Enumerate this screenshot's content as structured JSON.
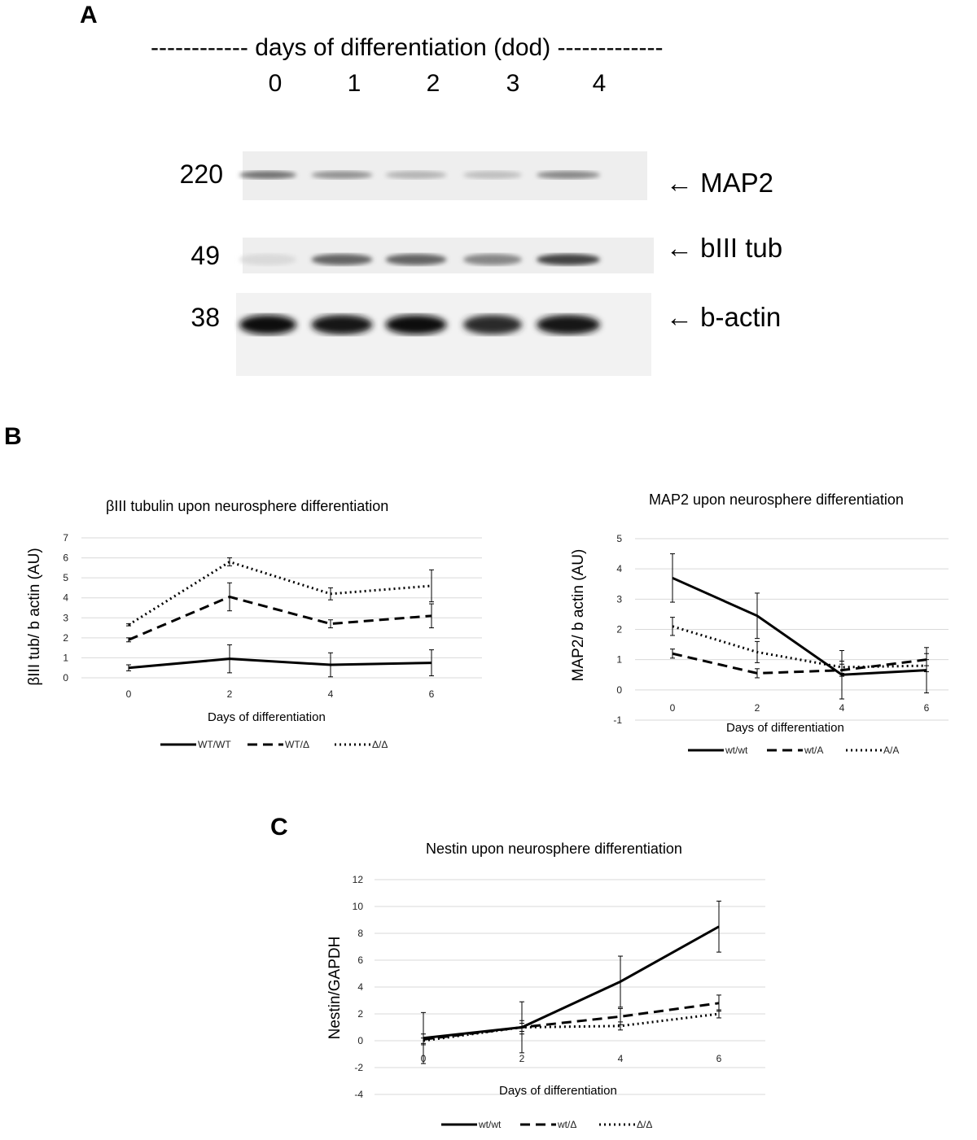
{
  "panel_a": {
    "letter": "A",
    "header": "------------ days of differentiation (dod) -------------",
    "lanes": [
      "0",
      "1",
      "2",
      "3",
      "4"
    ],
    "bands": [
      {
        "mw": "220",
        "label": "← MAP2"
      },
      {
        "mw": "49",
        "label": "← bIII tub"
      },
      {
        "mw": "38",
        "label": "← b-actin"
      }
    ],
    "band_intensity": {
      "MAP2": [
        0.55,
        0.4,
        0.25,
        0.2,
        0.45
      ],
      "bIII tub": [
        0.08,
        0.6,
        0.6,
        0.45,
        0.75
      ],
      "b-actin": [
        1.0,
        0.95,
        1.0,
        0.85,
        0.95
      ]
    }
  },
  "panel_b": {
    "letter": "B"
  },
  "panel_c": {
    "letter": "C"
  },
  "chart_data": [
    {
      "type": "line",
      "title": "βIII tubulin upon neurosphere differentiation",
      "xlabel": "Days of differentiation",
      "ylabel": "βIII tub/ b actin (AU)",
      "x": [
        0,
        2,
        4,
        6
      ],
      "ylim": [
        0,
        7
      ],
      "yticks": [
        0,
        1,
        2,
        3,
        4,
        5,
        6,
        7
      ],
      "grid": true,
      "legend_position": "bottom",
      "series": [
        {
          "name": "WT/WT",
          "style": "solid",
          "values": [
            0.5,
            0.95,
            0.65,
            0.75
          ],
          "errors": [
            0.15,
            0.7,
            0.6,
            0.65
          ]
        },
        {
          "name": "WT/Δ",
          "style": "dashed",
          "values": [
            1.9,
            4.05,
            2.7,
            3.1
          ],
          "errors": [
            0.1,
            0.7,
            0.2,
            0.6
          ]
        },
        {
          "name": "Δ/Δ",
          "style": "dotted",
          "values": [
            2.65,
            5.8,
            4.2,
            4.6
          ],
          "errors": [
            0.05,
            0.2,
            0.3,
            0.8
          ]
        }
      ]
    },
    {
      "type": "line",
      "title": "MAP2 upon neurosphere differentiation",
      "xlabel": "Days of differentiation",
      "ylabel": "MAP2/ b actin (AU)",
      "x": [
        0,
        2,
        4,
        6
      ],
      "ylim": [
        -1,
        5
      ],
      "yticks": [
        -1,
        0,
        1,
        2,
        3,
        4,
        5
      ],
      "grid": true,
      "legend_position": "bottom",
      "series": [
        {
          "name": "wt/wt",
          "style": "solid",
          "values": [
            3.7,
            2.45,
            0.5,
            0.65
          ],
          "errors": [
            0.8,
            0.75,
            0.8,
            0.75
          ]
        },
        {
          "name": "wt/A",
          "style": "dashed",
          "values": [
            1.2,
            0.55,
            0.65,
            1.0
          ],
          "errors": [
            0.15,
            0.15,
            0.2,
            0.2
          ]
        },
        {
          "name": "A/A",
          "style": "dotted",
          "values": [
            2.1,
            1.25,
            0.75,
            0.8
          ],
          "errors": [
            0.3,
            0.35,
            0.2,
            0.2
          ]
        }
      ]
    },
    {
      "type": "line",
      "title": "Nestin upon neurosphere differentiation",
      "xlabel": "Days of differentiation",
      "ylabel": "Nestin/GAPDH",
      "x": [
        0,
        2,
        4,
        6
      ],
      "ylim": [
        -4,
        12
      ],
      "yticks": [
        -4,
        -2,
        0,
        2,
        4,
        6,
        8,
        10,
        12
      ],
      "grid": true,
      "legend_position": "bottom",
      "series": [
        {
          "name": "wt/wt",
          "style": "solid",
          "values": [
            0.2,
            1.0,
            4.4,
            8.5
          ],
          "errors": [
            1.9,
            1.9,
            1.9,
            1.9
          ]
        },
        {
          "name": "wt/Δ",
          "style": "dashed",
          "values": [
            0.1,
            1.0,
            1.8,
            2.8
          ],
          "errors": [
            0.4,
            0.5,
            0.6,
            0.6
          ]
        },
        {
          "name": "Δ/Δ",
          "style": "dotted",
          "values": [
            0.0,
            1.0,
            1.1,
            2.0
          ],
          "errors": [
            0.2,
            0.3,
            0.3,
            0.3
          ]
        }
      ]
    }
  ]
}
